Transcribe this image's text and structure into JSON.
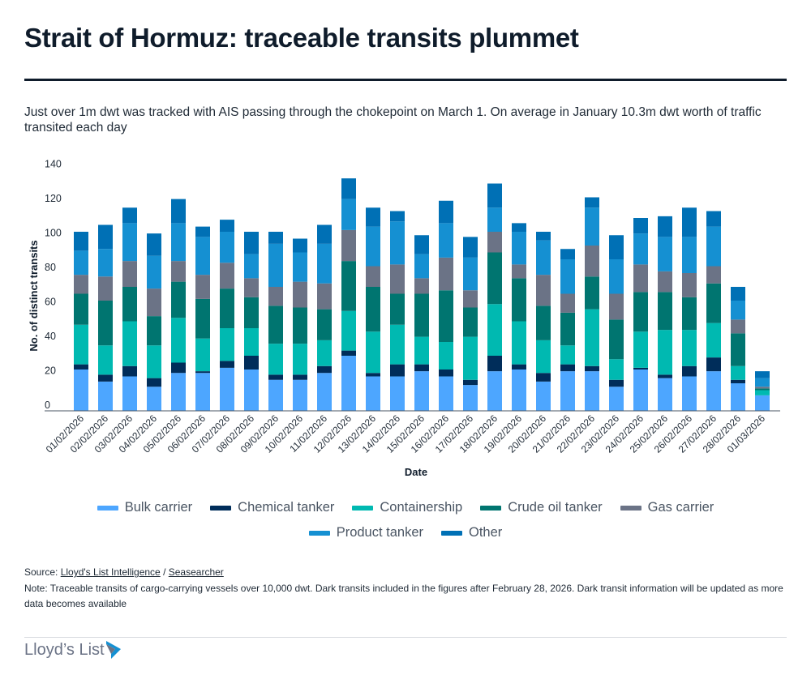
{
  "title": "Strait of Hormuz: traceable transits plummet",
  "subtitle": "Just over 1m dwt was tracked with AIS passing through the chokepoint on March 1. On average in January 10.3m dwt worth of traffic transited each day",
  "chart_data": {
    "type": "bar",
    "stacked": true,
    "xlabel": "Date",
    "ylabel": "No. of distinct transits",
    "ylim": [
      0,
      140
    ],
    "yticks": [
      0,
      20,
      40,
      60,
      80,
      100,
      120,
      140
    ],
    "grid": false,
    "legend_position": "bottom",
    "categories": [
      "01/02/2026",
      "02/02/2026",
      "03/02/2026",
      "04/02/2026",
      "05/02/2026",
      "06/02/2026",
      "07/02/2026",
      "08/02/2026",
      "09/02/2026",
      "10/02/2026",
      "11/02/2026",
      "12/02/2026",
      "13/02/2026",
      "14/02/2026",
      "15/02/2026",
      "16/02/2026",
      "17/02/2026",
      "18/02/2026",
      "19/02/2026",
      "20/02/2026",
      "21/02/2026",
      "22/02/2026",
      "23/02/2026",
      "24/02/2026",
      "25/02/2026",
      "26/02/2026",
      "27/02/2026",
      "28/02/2026",
      "01/03/2026"
    ],
    "series": [
      {
        "name": "Bulk carrier",
        "color": "#4da6ff",
        "values": [
          24,
          17,
          20,
          14,
          22,
          22,
          25,
          24,
          18,
          18,
          22,
          32,
          20,
          20,
          23,
          20,
          15,
          23,
          24,
          17,
          23,
          23,
          14,
          24,
          19,
          20,
          23,
          16,
          9
        ]
      },
      {
        "name": "Chemical tanker",
        "color": "#002d5a",
        "values": [
          3,
          4,
          6,
          5,
          6,
          1,
          4,
          8,
          3,
          3,
          4,
          3,
          2,
          7,
          4,
          4,
          3,
          9,
          3,
          5,
          4,
          3,
          4,
          1,
          2,
          6,
          8,
          2,
          0
        ]
      },
      {
        "name": "Containership",
        "color": "#00b9b1",
        "values": [
          23,
          17,
          26,
          19,
          26,
          19,
          19,
          16,
          18,
          18,
          15,
          23,
          24,
          23,
          16,
          16,
          25,
          30,
          25,
          19,
          11,
          33,
          12,
          21,
          26,
          21,
          20,
          8,
          3
        ]
      },
      {
        "name": "Crude oil tanker",
        "color": "#007570",
        "values": [
          18,
          26,
          20,
          17,
          21,
          23,
          23,
          18,
          22,
          21,
          18,
          29,
          26,
          18,
          25,
          30,
          17,
          30,
          25,
          20,
          19,
          19,
          23,
          23,
          22,
          19,
          23,
          19,
          1
        ]
      },
      {
        "name": "Gas carrier",
        "color": "#6b7386",
        "values": [
          11,
          14,
          15,
          16,
          12,
          14,
          15,
          11,
          11,
          15,
          15,
          18,
          12,
          17,
          9,
          19,
          10,
          12,
          8,
          18,
          11,
          18,
          15,
          16,
          12,
          14,
          10,
          8,
          1
        ]
      },
      {
        "name": "Product tanker",
        "color": "#1590d2",
        "values": [
          14,
          16,
          22,
          19,
          22,
          22,
          18,
          14,
          25,
          17,
          23,
          18,
          23,
          25,
          14,
          20,
          19,
          14,
          19,
          20,
          20,
          22,
          20,
          18,
          20,
          21,
          23,
          11,
          5
        ]
      },
      {
        "name": "Other",
        "color": "#0070b5",
        "values": [
          11,
          14,
          9,
          13,
          14,
          6,
          7,
          13,
          7,
          8,
          11,
          12,
          11,
          6,
          11,
          13,
          12,
          14,
          5,
          5,
          6,
          6,
          14,
          9,
          12,
          17,
          9,
          8,
          4
        ]
      }
    ]
  },
  "footer": {
    "source_prefix": "Source: ",
    "source_link1": "Lloyd's List Intelligence",
    "source_sep": " / ",
    "source_link2": "Seasearcher",
    "note": "Note: Traceable transits of cargo-carrying vessels over 10,000 dwt. Dark transits included in the figures after February 28, 2026. Dark transit information will be updated as more data becomes available"
  },
  "logo_text": "Lloyd’s List"
}
